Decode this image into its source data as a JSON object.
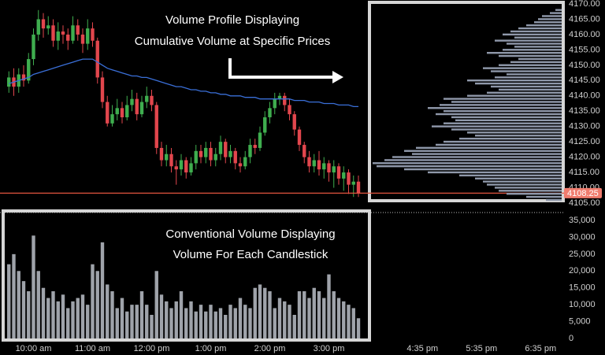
{
  "chart_data": [
    {
      "type": "candlestick",
      "annotation": [
        "Volume Profile Displaying",
        "Cumulative Volume at Specific Prices"
      ],
      "colors": {
        "up": "#3fae4f",
        "down": "#e2464d"
      },
      "x": [
        575,
        580,
        585,
        590,
        595,
        600,
        605,
        610,
        615,
        620,
        625,
        630,
        635,
        640,
        645,
        650,
        655,
        660,
        665,
        670,
        675,
        680,
        685,
        690,
        695,
        700,
        705,
        710,
        715,
        720,
        725,
        730,
        735,
        740,
        745,
        750,
        755,
        760,
        765,
        770,
        775,
        780,
        785,
        790,
        795,
        800,
        805,
        810,
        815,
        820,
        825,
        830,
        835,
        840,
        845,
        850,
        855,
        860,
        865,
        870,
        875,
        880,
        885,
        890,
        895,
        900,
        905,
        910,
        915,
        920,
        925,
        930
      ],
      "open": [
        4143,
        4146,
        4143,
        4147,
        4145,
        4152,
        4160,
        4165,
        4162,
        4163,
        4158,
        4161,
        4160,
        4158,
        4163,
        4160,
        4157,
        4162,
        4158,
        4146,
        4138,
        4131,
        4134,
        4136,
        4133,
        4137,
        4139,
        4134,
        4138,
        4140,
        4137,
        4123,
        4119,
        4121,
        4117,
        4116,
        4119,
        4115,
        4118,
        4122,
        4120,
        4123,
        4119,
        4121,
        4125,
        4120,
        4122,
        4118,
        4117,
        4120,
        4124,
        4123,
        4128,
        4133,
        4136,
        4139,
        4140,
        4137,
        4134,
        4129,
        4124,
        4120,
        4117,
        4119,
        4116,
        4118,
        4115,
        4117,
        4113,
        4115,
        4111,
        4112
      ],
      "high": [
        4148,
        4149,
        4149,
        4150,
        4154,
        4162,
        4168,
        4167,
        4166,
        4165,
        4164,
        4163,
        4162,
        4166,
        4165,
        4162,
        4165,
        4164,
        4159,
        4148,
        4140,
        4137,
        4139,
        4138,
        4140,
        4142,
        4141,
        4140,
        4143,
        4142,
        4138,
        4125,
        4124,
        4123,
        4119,
        4121,
        4120,
        4120,
        4124,
        4124,
        4125,
        4125,
        4123,
        4127,
        4126,
        4124,
        4123,
        4120,
        4122,
        4126,
        4126,
        4130,
        4135,
        4138,
        4141,
        4141,
        4141,
        4139,
        4135,
        4130,
        4125,
        4122,
        4121,
        4122,
        4120,
        4119,
        4119,
        4118,
        4117,
        4116,
        4114,
        4114
      ],
      "low": [
        4141,
        4140,
        4141,
        4143,
        4144,
        4150,
        4158,
        4159,
        4160,
        4156,
        4155,
        4157,
        4155,
        4157,
        4158,
        4154,
        4155,
        4156,
        4144,
        4136,
        4130,
        4130,
        4132,
        4131,
        4132,
        4135,
        4132,
        4133,
        4136,
        4135,
        4121,
        4117,
        4117,
        4115,
        4111,
        4114,
        4113,
        4114,
        4116,
        4118,
        4118,
        4117,
        4117,
        4119,
        4118,
        4118,
        4116,
        4115,
        4116,
        4118,
        4121,
        4122,
        4127,
        4131,
        4134,
        4137,
        4135,
        4132,
        4127,
        4122,
        4118,
        4115,
        4115,
        4114,
        4113,
        4112,
        4110,
        4111,
        4109,
        4108,
        4107,
        4107
      ],
      "close": [
        4146,
        4143,
        4147,
        4145,
        4152,
        4160,
        4165,
        4162,
        4163,
        4158,
        4161,
        4160,
        4158,
        4163,
        4160,
        4157,
        4162,
        4158,
        4146,
        4138,
        4131,
        4134,
        4136,
        4133,
        4137,
        4139,
        4134,
        4138,
        4140,
        4137,
        4123,
        4119,
        4121,
        4117,
        4116,
        4119,
        4115,
        4118,
        4122,
        4120,
        4123,
        4119,
        4121,
        4125,
        4120,
        4122,
        4118,
        4117,
        4120,
        4124,
        4123,
        4128,
        4133,
        4136,
        4139,
        4140,
        4137,
        4134,
        4129,
        4124,
        4120,
        4117,
        4119,
        4116,
        4118,
        4115,
        4117,
        4113,
        4115,
        4111,
        4112,
        4108.25
      ],
      "moving_average": {
        "color": "#3a6fd8",
        "values": [
          4144,
          4144.5,
          4145,
          4145.5,
          4146,
          4147,
          4147.5,
          4148,
          4148.5,
          4149,
          4149.5,
          4150,
          4150.5,
          4151,
          4151.5,
          4152,
          4152,
          4152,
          4151,
          4150,
          4149,
          4148.5,
          4148,
          4147.5,
          4147,
          4146.5,
          4146.5,
          4146,
          4146,
          4145.5,
          4145,
          4144.5,
          4144,
          4143.5,
          4143,
          4143,
          4142.5,
          4142,
          4142,
          4141.5,
          4141.5,
          4141,
          4141,
          4140.5,
          4140.5,
          4140,
          4140,
          4140,
          4139.5,
          4139.5,
          4139.5,
          4139,
          4139,
          4139,
          4139,
          4139,
          4139,
          4139,
          4138.5,
          4138.5,
          4138.5,
          4138,
          4138,
          4138,
          4137.5,
          4137.5,
          4137.5,
          4137,
          4137,
          4137,
          4136.5,
          4136.5
        ]
      },
      "last_price": 4108.25,
      "last_price_color": "#f07c6e",
      "xlim": [
        566,
        1138
      ],
      "ylim": [
        4105,
        4170
      ],
      "yticks": [
        {
          "value": 4105,
          "label": "4105.00"
        },
        {
          "value": 4110,
          "label": "4110.00"
        },
        {
          "value": 4115,
          "label": "4115.00"
        },
        {
          "value": 4120,
          "label": "4120.00"
        },
        {
          "value": 4125,
          "label": "4125.00"
        },
        {
          "value": 4130,
          "label": "4130.00"
        },
        {
          "value": 4135,
          "label": "4135.00"
        },
        {
          "value": 4140,
          "label": "4140.00"
        },
        {
          "value": 4145,
          "label": "4145.00"
        },
        {
          "value": 4150,
          "label": "4150.00"
        },
        {
          "value": 4155,
          "label": "4155.00"
        },
        {
          "value": 4160,
          "label": "4160.00"
        },
        {
          "value": 4165,
          "label": "4165.00"
        },
        {
          "value": 4170,
          "label": "4170.00"
        }
      ]
    },
    {
      "type": "bar",
      "annotation": [
        "Conventional Volume Displaying",
        "Volume For Each Candlestick"
      ],
      "color": "#9fa3aa",
      "values": [
        22000,
        25000,
        20000,
        17000,
        14000,
        30500,
        20000,
        15000,
        12000,
        14000,
        11000,
        13000,
        9000,
        11000,
        12000,
        13000,
        10000,
        22000,
        20000,
        28500,
        16000,
        14000,
        9000,
        12000,
        8000,
        10000,
        10000,
        14000,
        10000,
        7000,
        20000,
        13000,
        11000,
        9000,
        11000,
        14000,
        9000,
        11000,
        8000,
        10000,
        8000,
        10000,
        8000,
        9000,
        7000,
        10000,
        9000,
        12000,
        10000,
        9000,
        15000,
        16000,
        15000,
        14000,
        9000,
        12000,
        11000,
        10000,
        7000,
        14000,
        14000,
        12000,
        15000,
        14000,
        12000,
        19000,
        14000,
        12000,
        11000,
        10000,
        9000,
        6000
      ],
      "ylim": [
        0,
        35000
      ],
      "yticks": [
        0,
        {
          "value": 5000,
          "label": "5,000"
        },
        {
          "value": 10000,
          "label": "10,000"
        },
        {
          "value": 15000,
          "label": "15,000"
        },
        {
          "value": 20000,
          "label": "20,000"
        },
        {
          "value": 25000,
          "label": "25,000"
        },
        {
          "value": 30000,
          "label": "30,000"
        },
        {
          "value": 35000,
          "label": "35,000"
        }
      ],
      "xticks": [
        {
          "value": 600,
          "label": "10:00 am"
        },
        {
          "value": 660,
          "label": "11:00 am"
        },
        {
          "value": 720,
          "label": "12:00 pm"
        },
        {
          "value": 780,
          "label": "1:00 pm"
        },
        {
          "value": 840,
          "label": "2:00 pm"
        },
        {
          "value": 900,
          "label": "3:00 pm"
        },
        {
          "value": 995,
          "label": "4:35 pm"
        },
        {
          "value": 1055,
          "label": "5:35 pm"
        },
        {
          "value": 1115,
          "label": "6:35 pm"
        }
      ]
    },
    {
      "type": "profile",
      "color": "#8f98aa",
      "y": [
        4106,
        4107,
        4108,
        4109,
        4110,
        4111,
        4112,
        4113,
        4114,
        4115,
        4116,
        4117,
        4118,
        4119,
        4120,
        4121,
        4122,
        4123,
        4124,
        4125,
        4126,
        4127,
        4128,
        4129,
        4130,
        4131,
        4132,
        4133,
        4134,
        4135,
        4136,
        4137,
        4138,
        4139,
        4140,
        4141,
        4142,
        4143,
        4144,
        4145,
        4146,
        4147,
        4148,
        4149,
        4150,
        4151,
        4152,
        4153,
        4154,
        4155,
        4156,
        4157,
        4158,
        4159,
        4160,
        4161,
        4162,
        4163,
        4164,
        4165,
        4166,
        4167,
        4168
      ],
      "values": [
        20,
        45,
        70,
        80,
        85,
        95,
        100,
        110,
        130,
        170,
        200,
        235,
        240,
        225,
        215,
        190,
        200,
        185,
        160,
        150,
        130,
        110,
        120,
        140,
        165,
        150,
        135,
        140,
        160,
        150,
        170,
        155,
        140,
        150,
        120,
        95,
        80,
        90,
        110,
        120,
        85,
        70,
        90,
        100,
        80,
        65,
        55,
        80,
        95,
        75,
        60,
        70,
        85,
        60,
        75,
        65,
        55,
        45,
        35,
        30,
        25,
        15,
        8
      ]
    }
  ]
}
